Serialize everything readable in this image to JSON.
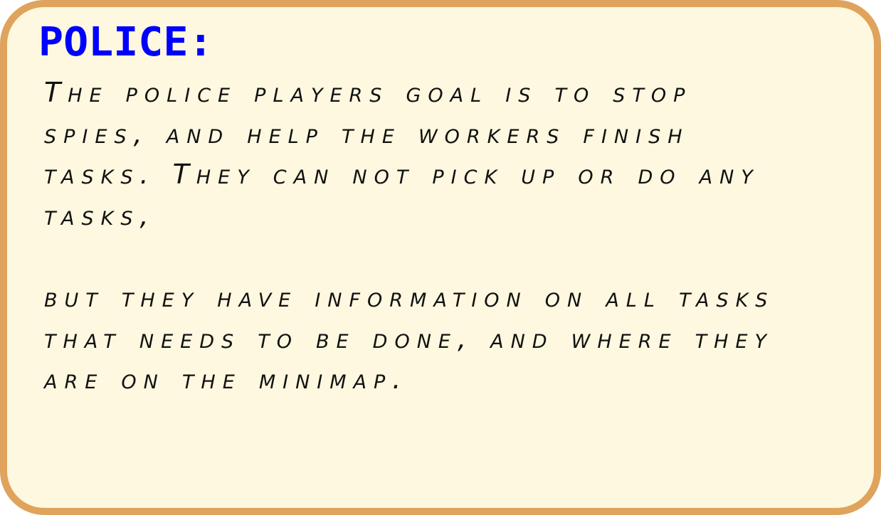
{
  "card": {
    "title": "POLICE:",
    "paragraph_1": "The police players goal is to stop\nspies, and help the workers finish\ntasks. They can not pick up or do any\ntasks,",
    "paragraph_2": "but they have information on all tasks\nthat needs to be done, and where they\nare on the minimap."
  },
  "colors": {
    "title": "#0000ff",
    "border": "#dfa35c",
    "background": "#fdf8df",
    "text": "#111111"
  }
}
